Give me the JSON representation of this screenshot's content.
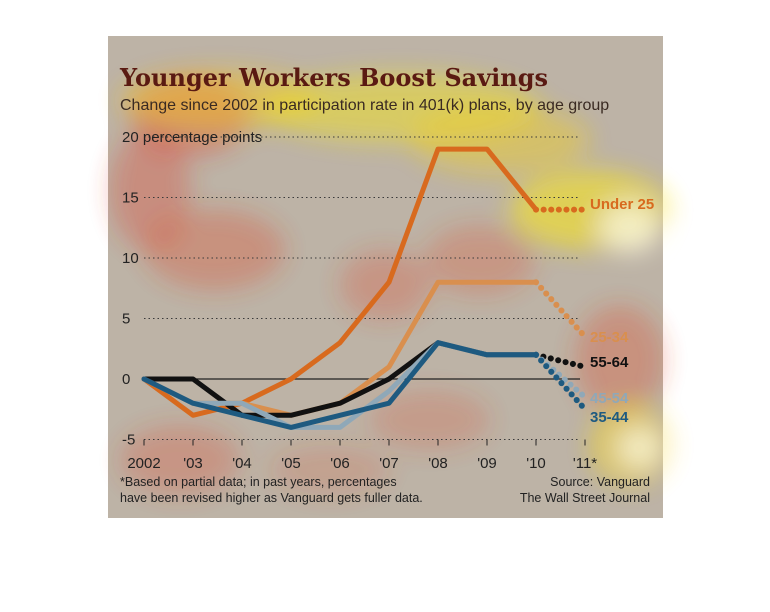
{
  "chart_data": {
    "type": "line",
    "title": "Younger Workers Boost Savings",
    "subtitle": "Change since 2002 in participation rate in 401(k) plans, by age group",
    "ylabel": "20 percentage points",
    "categories": [
      "2002",
      "'03",
      "'04",
      "'05",
      "'06",
      "'07",
      "'08",
      "'09",
      "'10",
      "'11*"
    ],
    "ylim": [
      -5,
      20
    ],
    "yticks": [
      "-5",
      "0",
      "5",
      "10",
      "15"
    ],
    "grid": true,
    "series": [
      {
        "name": "Under 25",
        "color": "#d86a1e",
        "values": [
          0,
          -3,
          -2,
          0,
          3,
          8,
          19,
          19,
          14,
          14
        ],
        "dotted_from": 8
      },
      {
        "name": "25-34",
        "color": "#d98f4e",
        "values": [
          0,
          -2,
          -2,
          -3,
          -2,
          1,
          8,
          8,
          8,
          3.5
        ],
        "dotted_from": 8
      },
      {
        "name": "55-64",
        "color": "#111111",
        "values": [
          0,
          0,
          -3,
          -3,
          -2,
          0,
          3,
          2,
          2,
          1
        ],
        "dotted_from": 8
      },
      {
        "name": "45-54",
        "color": "#8fa8b8",
        "values": [
          0,
          -2,
          -2,
          -4,
          -4,
          -1,
          3,
          2,
          2,
          -1.5
        ],
        "dotted_from": 8
      },
      {
        "name": "35-44",
        "color": "#1e5a80",
        "values": [
          0,
          -2,
          -3,
          -4,
          -3,
          -2,
          3,
          2,
          2,
          -2.5
        ],
        "dotted_from": 8
      }
    ],
    "footnote_lines": [
      "*Based on partial data; in past years, percentages",
      "have been revised higher as Vanguard gets fuller data."
    ],
    "source_lines": [
      "Source: Vanguard",
      "The Wall Street Journal"
    ]
  }
}
